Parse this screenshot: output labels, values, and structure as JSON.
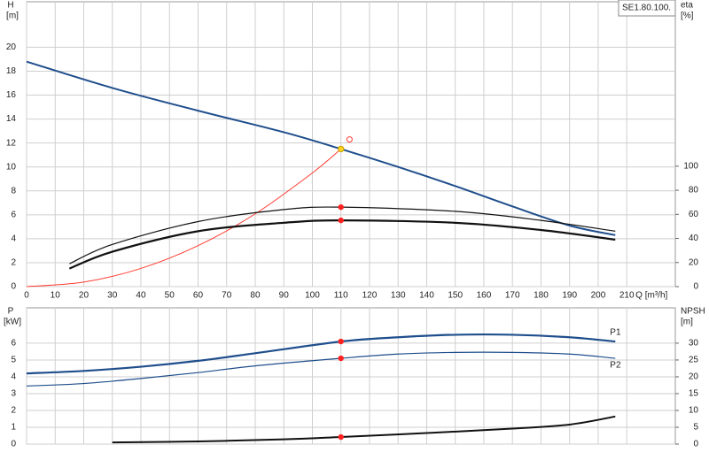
{
  "chart_data": [
    {
      "type": "line",
      "annotation": "SE1.80.100.",
      "ylabel": "H",
      "yunit": "[m]",
      "y2label": "eta",
      "y2unit": "[%]",
      "xlabel": "Q [m³/h]",
      "xlim": [
        0,
        227
      ],
      "xticks": [
        0,
        10,
        20,
        30,
        40,
        50,
        60,
        70,
        80,
        90,
        100,
        110,
        120,
        130,
        140,
        150,
        160,
        170,
        180,
        190,
        200,
        210
      ],
      "x_tick_labels": true,
      "ylim": [
        0,
        23.8
      ],
      "yticks": [
        0,
        2,
        4,
        6,
        8,
        10,
        12,
        14,
        16,
        18,
        20
      ],
      "y2lim": [
        0,
        236.5
      ],
      "y2ticks": [
        0,
        20,
        40,
        60,
        80,
        100
      ],
      "grid": true,
      "series": [
        {
          "color": "#1f4e8c",
          "width": 2,
          "x": [
            0,
            30,
            60,
            90,
            110,
            130,
            150,
            170,
            190,
            206
          ],
          "values": [
            18.8,
            16.6,
            14.7,
            12.9,
            11.5,
            10.0,
            8.4,
            6.7,
            5.1,
            4.3
          ]
        },
        {
          "color": "#ff3b30",
          "width": 1,
          "x": [
            0,
            20,
            40,
            60,
            80,
            100,
            110
          ],
          "values": [
            0,
            0.38,
            1.52,
            3.42,
            6.08,
            9.5,
            11.5
          ]
        },
        {
          "color": "#111111",
          "width": 1.2,
          "axis": "y2",
          "x": [
            15,
            30,
            60,
            90,
            110,
            150,
            180,
            206
          ],
          "values": [
            19,
            35,
            54,
            64,
            66,
            62.5,
            55,
            46
          ]
        },
        {
          "color": "#111111",
          "width": 2.2,
          "axis": "y2",
          "x": [
            15,
            30,
            60,
            90,
            110,
            150,
            180,
            206
          ],
          "values": [
            15,
            29,
            46,
            53,
            55,
            53,
            47,
            39
          ]
        }
      ],
      "points": [
        {
          "x": 110,
          "y": 11.5,
          "color": "#ffd21f"
        },
        {
          "x": 113,
          "y": 12.3,
          "color": "#ff3b30",
          "open": true
        },
        {
          "x": 110,
          "y": 66,
          "color": "#ff2020",
          "axis": "y2"
        },
        {
          "x": 110,
          "y": 55,
          "color": "#ff2020",
          "axis": "y2"
        }
      ]
    },
    {
      "type": "line",
      "ylabel": "P",
      "yunit": "[kW]",
      "y2label": "NPSH",
      "y2unit": "[m]",
      "xlim": [
        0,
        227
      ],
      "xticks": [
        0,
        10,
        20,
        30,
        40,
        50,
        60,
        70,
        80,
        90,
        100,
        110,
        120,
        130,
        140,
        150,
        160,
        170,
        180,
        190,
        200,
        210
      ],
      "x_tick_labels": false,
      "ylim": [
        0,
        8.1
      ],
      "yticks": [
        0,
        1,
        2,
        3,
        4,
        5,
        6
      ],
      "y2lim": [
        0,
        40.5
      ],
      "y2ticks": [
        0,
        5,
        10,
        15,
        20,
        25,
        30
      ],
      "grid": true,
      "series": [
        {
          "name": "P1",
          "color": "#1f4e8c",
          "width": 2.2,
          "x": [
            0,
            20,
            40,
            60,
            80,
            110,
            130,
            150,
            170,
            190,
            206
          ],
          "values": [
            4.2,
            4.35,
            4.6,
            4.95,
            5.4,
            6.1,
            6.35,
            6.5,
            6.5,
            6.35,
            6.1
          ]
        },
        {
          "name": "P2",
          "color": "#1f4e8c",
          "width": 1.2,
          "x": [
            0,
            20,
            40,
            60,
            80,
            110,
            130,
            150,
            170,
            190,
            206
          ],
          "values": [
            3.45,
            3.6,
            3.9,
            4.25,
            4.65,
            5.1,
            5.35,
            5.45,
            5.45,
            5.35,
            5.1
          ]
        },
        {
          "color": "#111111",
          "width": 2,
          "axis": "y2",
          "x": [
            30,
            60,
            90,
            110,
            140,
            170,
            190,
            206
          ],
          "values": [
            0.5,
            0.8,
            1.4,
            2.1,
            3.3,
            4.6,
            5.8,
            8.2
          ]
        }
      ],
      "points": [
        {
          "x": 110,
          "y": 6.1,
          "color": "#ff2020"
        },
        {
          "x": 110,
          "y": 5.1,
          "color": "#ff2020"
        },
        {
          "x": 110,
          "y": 2.1,
          "color": "#ff2020",
          "axis": "y2"
        }
      ]
    }
  ]
}
